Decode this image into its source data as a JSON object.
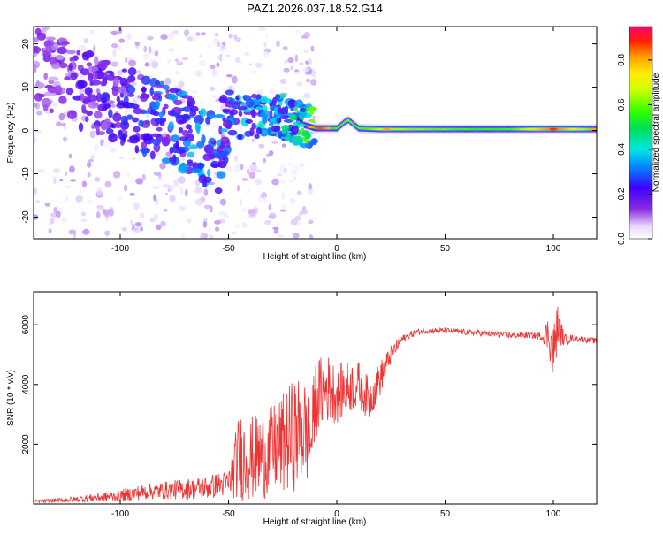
{
  "figure_title": "PAZ1.2026.037.18.52.G14",
  "chart_data": [
    {
      "type": "heatmap",
      "title": "PAZ1.2026.037.18.52.G14",
      "xlabel": "Height of straight line (km)",
      "ylabel": "Frequency (Hz)",
      "xlim": [
        -140,
        120
      ],
      "ylim": [
        -25,
        24
      ],
      "xticks": [
        -100,
        -50,
        0,
        50,
        100
      ],
      "yticks": [
        -20,
        -10,
        0,
        10,
        20
      ],
      "xtick_labels": [
        "-100",
        "-50",
        "0",
        "50",
        "100"
      ],
      "ytick_labels": [
        "-20",
        "-10",
        "0",
        "10",
        "20"
      ],
      "colorbar": {
        "label": "Normalized spectral amplitude",
        "range": [
          0,
          0.95
        ],
        "ticks": [
          0.0,
          0.2,
          0.4,
          0.6,
          0.8
        ],
        "tick_labels": [
          "0.0",
          "0.2",
          "0.4",
          "0.6",
          "0.8"
        ],
        "colormap": "rainbow"
      },
      "ridge": [
        {
          "x": -140,
          "f": 15,
          "a": 0.12
        },
        {
          "x": -130,
          "f": 13,
          "a": 0.15
        },
        {
          "x": -120,
          "f": 10,
          "a": 0.18
        },
        {
          "x": -110,
          "f": 8,
          "a": 0.2
        },
        {
          "x": -100,
          "f": 6,
          "a": 0.22
        },
        {
          "x": -90,
          "f": 4,
          "a": 0.25
        },
        {
          "x": -80,
          "f": 2,
          "a": 0.28
        },
        {
          "x": -70,
          "f": -1,
          "a": 0.3
        },
        {
          "x": -60,
          "f": -4,
          "a": 0.32
        },
        {
          "x": -55,
          "f": -6,
          "a": 0.3
        },
        {
          "x": -50,
          "f": 4,
          "a": 0.3
        },
        {
          "x": -40,
          "f": 3,
          "a": 0.35
        },
        {
          "x": -30,
          "f": 4,
          "a": 0.35
        },
        {
          "x": -20,
          "f": 2,
          "a": 0.4
        },
        {
          "x": -10,
          "f": 0.5,
          "a": 0.55
        },
        {
          "x": 0,
          "f": 0.5,
          "a": 0.6
        },
        {
          "x": 5,
          "f": 2.5,
          "a": 0.65
        },
        {
          "x": 10,
          "f": 0.5,
          "a": 0.6
        },
        {
          "x": 20,
          "f": 0.3,
          "a": 0.7
        },
        {
          "x": 40,
          "f": 0.3,
          "a": 0.65
        },
        {
          "x": 60,
          "f": 0.3,
          "a": 0.6
        },
        {
          "x": 80,
          "f": 0.3,
          "a": 0.6
        },
        {
          "x": 100,
          "f": 0.3,
          "a": 0.9
        },
        {
          "x": 120,
          "f": 0.3,
          "a": 0.6
        }
      ]
    },
    {
      "type": "line",
      "xlabel": "Height of straight line (km)",
      "ylabel": "SNR (10 * v/v)",
      "xlim": [
        -140,
        120
      ],
      "ylim": [
        0,
        7100
      ],
      "xticks": [
        -100,
        -50,
        0,
        50,
        100
      ],
      "yticks": [
        2000,
        4000,
        6000
      ],
      "xtick_labels": [
        "-100",
        "-50",
        "0",
        "50",
        "100"
      ],
      "ytick_labels": [
        "2000",
        "4000",
        "6000"
      ],
      "color": "#ee3333",
      "series": [
        {
          "name": "SNR",
          "x": [
            -140,
            -130,
            -120,
            -110,
            -100,
            -90,
            -80,
            -70,
            -60,
            -50,
            -45,
            -40,
            -35,
            -30,
            -25,
            -20,
            -15,
            -12,
            -10,
            -5,
            0,
            5,
            10,
            15,
            20,
            25,
            30,
            35,
            40,
            50,
            60,
            70,
            80,
            90,
            95,
            98,
            100,
            102,
            105,
            110,
            120
          ],
          "y": [
            80,
            120,
            160,
            220,
            280,
            400,
            450,
            500,
            550,
            700,
            1600,
            1500,
            1600,
            1800,
            2000,
            2300,
            2500,
            2000,
            3500,
            3900,
            3700,
            3900,
            4000,
            3500,
            4200,
            5000,
            5500,
            5700,
            5800,
            5800,
            5750,
            5700,
            5650,
            5650,
            5600,
            5700,
            5000,
            6000,
            5500,
            5550,
            5450
          ],
          "noise": [
            60,
            70,
            100,
            150,
            200,
            260,
            300,
            350,
            400,
            450,
            1500,
            1400,
            1500,
            1500,
            1700,
            1900,
            1800,
            1400,
            1300,
            1200,
            1000,
            900,
            800,
            700,
            600,
            300,
            150,
            120,
            100,
            100,
            100,
            100,
            100,
            100,
            150,
            700,
            1100,
            700,
            200,
            100,
            100
          ]
        }
      ]
    }
  ]
}
